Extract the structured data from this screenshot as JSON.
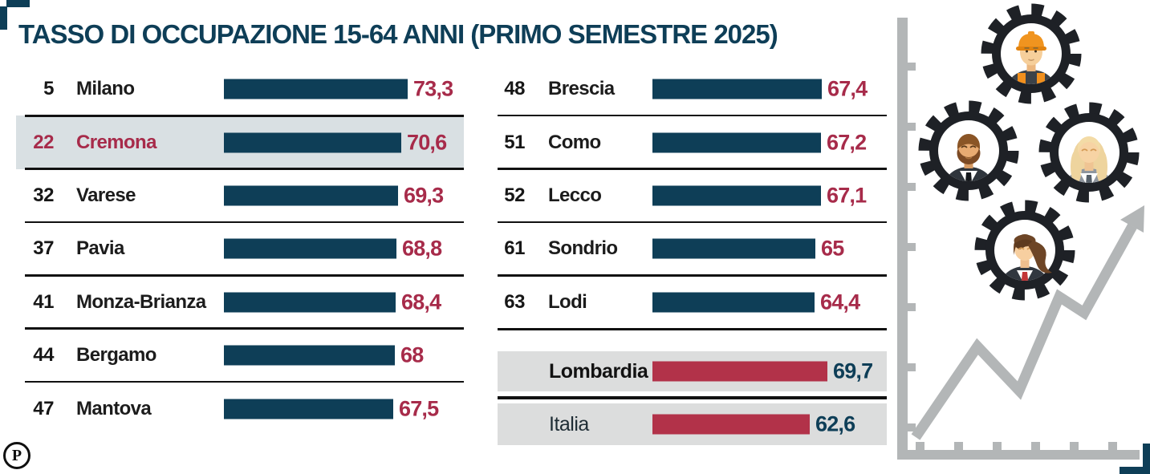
{
  "title": "TASSO DI OCCUPAZIONE 15-64 ANNI (PRIMO SEMESTRE 2025)",
  "logo_letter": "P",
  "colors": {
    "accent_blue": "#0e3e57",
    "accent_red_text": "#a72b4a",
    "accent_red_bar": "#b23249",
    "highlight_row_bg": "#d9e0e3",
    "summary_row_bg": "#dcdddd",
    "separator": "#111111",
    "illustration_gray": "#b3b6b7"
  },
  "chart_data": {
    "type": "bar",
    "orientation": "horizontal",
    "title": "TASSO DI OCCUPAZIONE 15-64 ANNI (PRIMO SEMESTRE 2025)",
    "unit": "%",
    "value_range": [
      0,
      75
    ],
    "left_rows": [
      {
        "rank": "5",
        "label": "Milano",
        "value": 73.3,
        "display": "73,3",
        "highlight": false
      },
      {
        "rank": "22",
        "label": "Cremona",
        "value": 70.6,
        "display": "70,6",
        "highlight": true
      },
      {
        "rank": "32",
        "label": "Varese",
        "value": 69.3,
        "display": "69,3",
        "highlight": false
      },
      {
        "rank": "37",
        "label": "Pavia",
        "value": 68.8,
        "display": "68,8",
        "highlight": false
      },
      {
        "rank": "41",
        "label": "Monza-Brianza",
        "value": 68.4,
        "display": "68,4",
        "highlight": false
      },
      {
        "rank": "44",
        "label": "Bergamo",
        "value": 68,
        "display": "68",
        "highlight": false
      },
      {
        "rank": "47",
        "label": "Mantova",
        "value": 67.5,
        "display": "67,5",
        "highlight": false
      }
    ],
    "right_rows": [
      {
        "rank": "48",
        "label": "Brescia",
        "value": 67.4,
        "display": "67,4",
        "highlight": false
      },
      {
        "rank": "51",
        "label": "Como",
        "value": 67.2,
        "display": "67,2",
        "highlight": false
      },
      {
        "rank": "52",
        "label": "Lecco",
        "value": 67.1,
        "display": "67,1",
        "highlight": false
      },
      {
        "rank": "61",
        "label": "Sondrio",
        "value": 65,
        "display": "65",
        "highlight": false
      },
      {
        "rank": "63",
        "label": "Lodi",
        "value": 64.4,
        "display": "64,4",
        "highlight": false
      }
    ],
    "summary_rows": [
      {
        "label": "Lombardia",
        "value": 69.7,
        "display": "69,7",
        "bold": true
      },
      {
        "label": "Italia",
        "value": 62.6,
        "display": "62,6",
        "bold": false
      }
    ]
  },
  "illustration": {
    "gears": [
      "construction-worker",
      "businessman-beard",
      "businesswoman-blonde",
      "businesswoman-ponytail"
    ],
    "motif": "rising-line-chart-with-arrow"
  }
}
